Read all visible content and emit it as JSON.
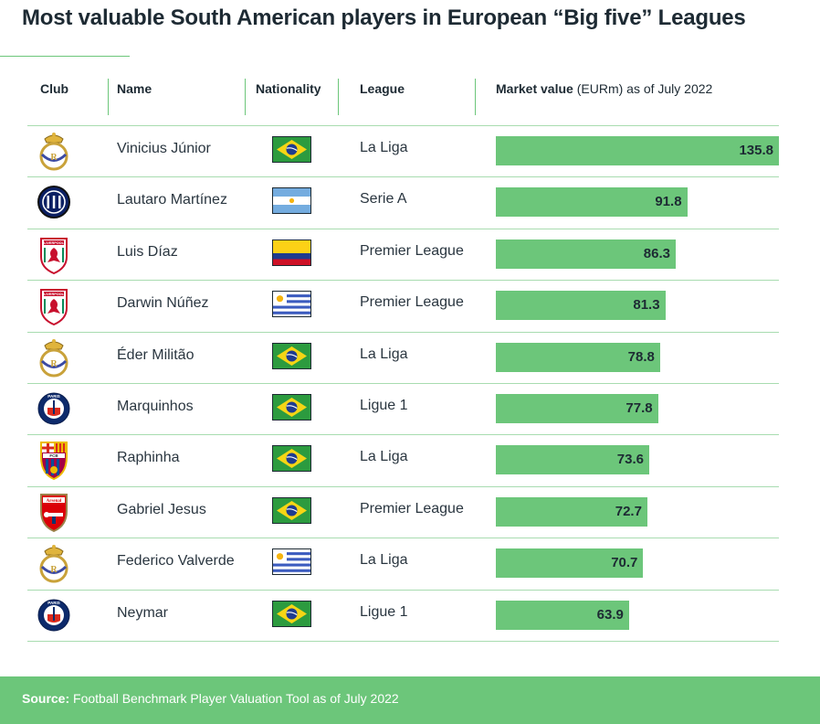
{
  "title": "Most valuable South American players in European “Big five” Leagues",
  "headers": {
    "club": "Club",
    "name": "Name",
    "nationality": "Nationality",
    "league": "League",
    "market_value_bold": "Market value",
    "market_value_rest": " (EURm) as of July 2022"
  },
  "colors": {
    "accent": "#6cc67a",
    "text": "#1d2a33",
    "rule": "#a8dcb0"
  },
  "rows": [
    {
      "club": "real-madrid-crest-icon",
      "name": "Vinicius Júnior",
      "nationality": "brazil-flag-icon",
      "league": "La Liga",
      "value": "135.8"
    },
    {
      "club": "inter-milan-crest-icon",
      "name": "Lautaro Martínez",
      "nationality": "argentina-flag-icon",
      "league": "Serie A",
      "value": "91.8"
    },
    {
      "club": "liverpool-crest-icon",
      "name": "Luis Díaz",
      "nationality": "colombia-flag-icon",
      "league": "Premier League",
      "value": "86.3"
    },
    {
      "club": "liverpool-crest-icon",
      "name": "Darwin Núñez",
      "nationality": "uruguay-flag-icon",
      "league": "Premier League",
      "value": "81.3"
    },
    {
      "club": "real-madrid-crest-icon",
      "name": "Éder Militão",
      "nationality": "brazil-flag-icon",
      "league": "La Liga",
      "value": "78.8"
    },
    {
      "club": "psg-crest-icon",
      "name": "Marquinhos",
      "nationality": "brazil-flag-icon",
      "league": "Ligue 1",
      "value": "77.8"
    },
    {
      "club": "barcelona-crest-icon",
      "name": "Raphinha",
      "nationality": "brazil-flag-icon",
      "league": "La Liga",
      "value": "73.6"
    },
    {
      "club": "arsenal-crest-icon",
      "name": "Gabriel Jesus",
      "nationality": "brazil-flag-icon",
      "league": "Premier League",
      "value": "72.7"
    },
    {
      "club": "real-madrid-crest-icon",
      "name": "Federico Valverde",
      "nationality": "uruguay-flag-icon",
      "league": "La Liga",
      "value": "70.7"
    },
    {
      "club": "psg-crest-icon",
      "name": "Neymar",
      "nationality": "brazil-flag-icon",
      "league": "Ligue 1",
      "value": "63.9"
    }
  ],
  "chart_data": {
    "type": "bar",
    "orientation": "horizontal",
    "categories": [
      "Vinicius Júnior",
      "Lautaro Martínez",
      "Luis Díaz",
      "Darwin Núñez",
      "Éder Militão",
      "Marquinhos",
      "Raphinha",
      "Gabriel Jesus",
      "Federico Valverde",
      "Neymar"
    ],
    "values": [
      135.8,
      91.8,
      86.3,
      81.3,
      78.8,
      77.8,
      73.6,
      72.7,
      70.7,
      63.9
    ],
    "title": "Most valuable South American players in European “Big five” Leagues",
    "xlabel": "Market value (EURm) as of July 2022",
    "ylabel": "",
    "xlim": [
      0,
      135.8
    ],
    "grid": false,
    "bar_color": "#6cc67a"
  },
  "footer": {
    "source_label": "Source:",
    "source_text": " Football Benchmark Player Valuation Tool as of July 2022"
  },
  "crest_text": {
    "psg": "PARIS",
    "barca": "FCB",
    "arsenal": "Arsenal",
    "liverpool": "LIVERPOOL"
  }
}
